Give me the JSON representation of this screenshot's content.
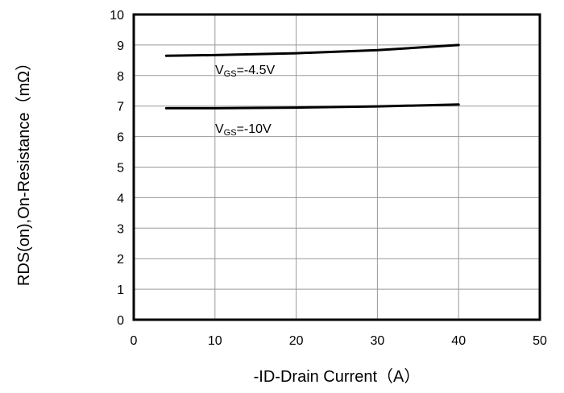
{
  "chart_data": {
    "type": "line",
    "xlabel": "-ID-Drain Current（A）",
    "ylabel": "RDS(on),On-Resistance（mΩ）",
    "xlim": [
      0,
      50
    ],
    "ylim": [
      0,
      10
    ],
    "x_ticks": [
      "0",
      "10",
      "20",
      "30",
      "40",
      "50"
    ],
    "y_ticks": [
      "0",
      "1",
      "2",
      "3",
      "4",
      "5",
      "6",
      "7",
      "8",
      "9",
      "10"
    ],
    "grid": true,
    "series": [
      {
        "name": "VGS=-4.5V",
        "label_main": "V",
        "label_sub": "GS",
        "label_rest": "=-4.5V",
        "x": [
          4,
          10,
          20,
          30,
          40
        ],
        "y": [
          8.65,
          8.67,
          8.73,
          8.83,
          9.0
        ]
      },
      {
        "name": "VGS=-10V",
        "label_main": "V",
        "label_sub": "GS",
        "label_rest": "=-10V",
        "x": [
          4,
          10,
          20,
          30,
          40
        ],
        "y": [
          6.93,
          6.93,
          6.95,
          6.99,
          7.05
        ]
      }
    ]
  }
}
